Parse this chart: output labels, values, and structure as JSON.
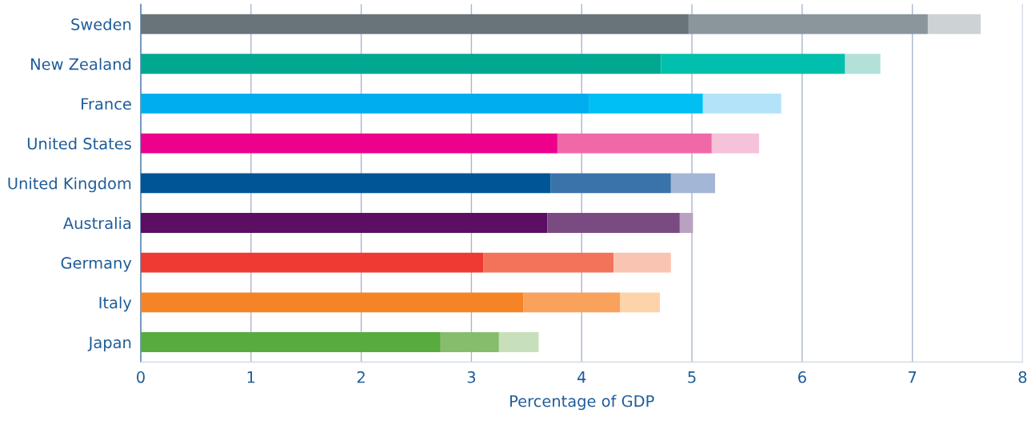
{
  "chart_data": {
    "type": "bar",
    "orientation": "horizontal",
    "stacked": true,
    "xlabel": "Percentage of GDP",
    "categories": [
      "Sweden",
      "New Zealand",
      "France",
      "United States",
      "United Kingdom",
      "Australia",
      "Germany",
      "Italy",
      "Japan"
    ],
    "series": [
      {
        "values": [
          4.97,
          4.72,
          4.07,
          3.78,
          3.72,
          3.69,
          3.11,
          3.47,
          2.72
        ],
        "colors": [
          "#68737a",
          "#00a891",
          "#00aeef",
          "#ec008c",
          "#005596",
          "#5c0e62",
          "#ee3a33",
          "#f58427",
          "#58ab3f"
        ]
      },
      {
        "values": [
          2.17,
          1.67,
          1.03,
          1.4,
          1.09,
          1.2,
          1.18,
          0.88,
          0.53
        ],
        "colors": [
          "#8a969c",
          "#00bfad",
          "#00c0f3",
          "#f068a8",
          "#3a72aa",
          "#7a4a83",
          "#f2735a",
          "#f9a25c",
          "#86bd6c"
        ]
      },
      {
        "values": [
          0.48,
          0.32,
          0.71,
          0.43,
          0.4,
          0.12,
          0.52,
          0.36,
          0.36
        ],
        "colors": [
          "#cdd2d5",
          "#b3e1da",
          "#b3e3f8",
          "#f5c2d9",
          "#a4b6d6",
          "#b8a2bf",
          "#f9c4b1",
          "#fdd3a9",
          "#c7e0bb"
        ]
      }
    ],
    "xlim": [
      0,
      8
    ],
    "xticks": [
      0,
      1,
      2,
      3,
      4,
      5,
      6,
      7,
      8
    ],
    "grid": "x"
  }
}
